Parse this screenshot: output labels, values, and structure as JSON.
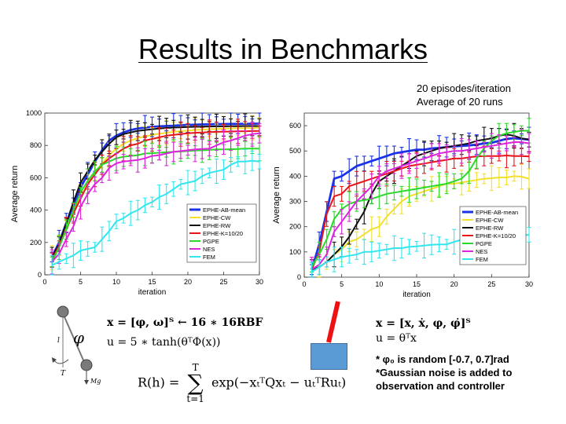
{
  "slide": {
    "title": "Results in Benchmarks",
    "note_line1": "20 episodes/iteration",
    "note_line2": "Average of 20 runs"
  },
  "colors": {
    "EPHE-AB-mean": "#1a33e6",
    "EPHE-CW": "#f2e02b",
    "EPHE-RW": "#111111",
    "EPHE-K=10/20": "#e8141a",
    "PGPE": "#2bd92b",
    "NES": "#dd25dd",
    "FEM": "#33e6ee"
  },
  "chart_data": [
    {
      "type": "line",
      "xlabel": "iteration",
      "ylabel": "Average return",
      "xlim": [
        0,
        30
      ],
      "ylim": [
        0,
        1000
      ],
      "xticks": [
        0,
        5,
        10,
        15,
        20,
        25,
        30
      ],
      "yticks": [
        0,
        200,
        400,
        600,
        800,
        1000
      ],
      "legend_position": "lower-right",
      "error_bars": true,
      "x": [
        1,
        2,
        3,
        4,
        5,
        6,
        7,
        8,
        9,
        10,
        11,
        12,
        13,
        14,
        15,
        16,
        17,
        18,
        19,
        20,
        21,
        22,
        23,
        24,
        25,
        26,
        27,
        28,
        29,
        30
      ],
      "series": [
        {
          "name": "EPHE-AB-mean",
          "values": [
            110,
            200,
            320,
            430,
            540,
            620,
            700,
            770,
            830,
            860,
            880,
            895,
            905,
            910,
            915,
            918,
            920,
            922,
            925,
            926,
            928,
            930,
            930,
            932,
            932,
            933,
            933,
            934,
            934,
            935
          ]
        },
        {
          "name": "EPHE-CW",
          "values": [
            105,
            180,
            290,
            390,
            480,
            560,
            630,
            690,
            740,
            780,
            810,
            830,
            845,
            855,
            865,
            872,
            878,
            884,
            888,
            892,
            895,
            898,
            900,
            902,
            904,
            905,
            906,
            907,
            908,
            910
          ]
        },
        {
          "name": "EPHE-RW",
          "values": [
            110,
            190,
            320,
            450,
            570,
            640,
            710,
            760,
            810,
            850,
            870,
            880,
            890,
            895,
            900,
            905,
            908,
            910,
            912,
            914,
            915,
            916,
            917,
            918,
            918,
            919,
            919,
            920,
            920,
            920
          ]
        },
        {
          "name": "EPHE-K=10/20",
          "values": [
            90,
            180,
            280,
            380,
            470,
            560,
            620,
            680,
            720,
            750,
            780,
            800,
            810,
            830,
            840,
            850,
            860,
            865,
            870,
            875,
            878,
            880,
            882,
            884,
            885,
            886,
            887,
            888,
            889,
            890
          ]
        },
        {
          "name": "PGPE",
          "values": [
            80,
            170,
            280,
            400,
            510,
            580,
            640,
            680,
            700,
            720,
            730,
            735,
            740,
            750,
            752,
            755,
            758,
            760,
            762,
            765,
            768,
            770,
            772,
            775,
            775,
            776,
            778,
            780,
            780,
            780
          ]
        },
        {
          "name": "NES",
          "values": [
            80,
            130,
            220,
            300,
            420,
            500,
            560,
            600,
            660,
            690,
            700,
            705,
            710,
            720,
            735,
            740,
            750,
            760,
            765,
            770,
            775,
            778,
            780,
            800,
            820,
            830,
            845,
            860,
            870,
            875
          ]
        },
        {
          "name": "FEM",
          "values": [
            60,
            80,
            100,
            120,
            150,
            160,
            170,
            220,
            270,
            330,
            350,
            380,
            400,
            430,
            450,
            480,
            500,
            530,
            560,
            570,
            580,
            610,
            630,
            640,
            650,
            680,
            700,
            700,
            705,
            700
          ]
        }
      ]
    },
    {
      "type": "line",
      "xlabel": "iteration",
      "ylabel": "Average return",
      "xlim": [
        0,
        30
      ],
      "ylim": [
        0,
        650
      ],
      "xticks": [
        0,
        5,
        10,
        15,
        20,
        25,
        30
      ],
      "yticks": [
        0,
        100,
        200,
        300,
        400,
        500,
        600
      ],
      "legend_position": "lower-right",
      "error_bars": true,
      "x": [
        1,
        2,
        3,
        4,
        5,
        6,
        7,
        8,
        9,
        10,
        11,
        12,
        13,
        14,
        15,
        16,
        17,
        18,
        19,
        20,
        21,
        22,
        23,
        24,
        25,
        26,
        27,
        28,
        29,
        30
      ],
      "series": [
        {
          "name": "EPHE-AB-mean",
          "values": [
            30,
            130,
            260,
            390,
            400,
            420,
            440,
            450,
            460,
            470,
            480,
            490,
            495,
            500,
            505,
            505,
            510,
            512,
            515,
            518,
            520,
            522,
            525,
            530,
            532,
            540,
            548,
            550,
            548,
            545
          ]
        },
        {
          "name": "EPHE-CW",
          "values": [
            30,
            40,
            60,
            90,
            110,
            140,
            150,
            170,
            190,
            200,
            240,
            270,
            300,
            320,
            330,
            340,
            350,
            360,
            370,
            370,
            375,
            380,
            385,
            390,
            392,
            395,
            395,
            400,
            398,
            390
          ]
        },
        {
          "name": "EPHE-RW",
          "values": [
            30,
            40,
            60,
            90,
            120,
            160,
            210,
            260,
            330,
            380,
            400,
            420,
            440,
            460,
            480,
            490,
            500,
            510,
            515,
            520,
            525,
            530,
            540,
            545,
            550,
            560,
            565,
            560,
            550,
            545
          ]
        },
        {
          "name": "EPHE-K=10/20",
          "values": [
            30,
            100,
            250,
            320,
            330,
            360,
            370,
            380,
            390,
            400,
            410,
            420,
            430,
            440,
            445,
            450,
            455,
            460,
            465,
            470,
            470,
            475,
            478,
            480,
            480,
            480,
            482,
            480,
            480,
            478
          ]
        },
        {
          "name": "PGPE",
          "values": [
            40,
            90,
            150,
            230,
            270,
            290,
            300,
            305,
            310,
            320,
            330,
            335,
            340,
            345,
            350,
            355,
            360,
            365,
            370,
            380,
            390,
            420,
            470,
            510,
            540,
            560,
            570,
            575,
            580,
            580
          ]
        },
        {
          "name": "NES",
          "values": [
            30,
            50,
            90,
            180,
            220,
            260,
            300,
            330,
            360,
            400,
            420,
            430,
            440,
            450,
            460,
            470,
            480,
            490,
            495,
            500,
            500,
            505,
            510,
            515,
            520,
            525,
            530,
            535,
            535,
            530
          ]
        },
        {
          "name": "FEM",
          "values": [
            20,
            40,
            60,
            70,
            80,
            85,
            90,
            100,
            100,
            105,
            110,
            115,
            115,
            120,
            122,
            125,
            128,
            130,
            130,
            140,
            148,
            150,
            152,
            155,
            155,
            158,
            160,
            162,
            165,
            168
          ]
        }
      ]
    }
  ],
  "pendulum": {
    "angle_symbol": "φ",
    "length_symbol": "l",
    "torque_symbol": "T",
    "weight_symbol": "Mg"
  },
  "left_formulas": {
    "line1": "x = [φ, ω]ᵀ ← 16 ∗ 16RBF",
    "line2": "u = 5 ∗ tanh(θᵀΦ(x))",
    "reward_lhs": "R(h) =",
    "reward_sum_top": "T",
    "reward_sum_bottom": "t=1",
    "reward_body": "exp(−xₜᵀQxₜ − uₜᵀRuₜ)"
  },
  "right_formulas": {
    "line1": "x = [x, ẋ, φ, φ̇]ᵀ",
    "line2": "u = θᵀx",
    "bullet1": "* φ₀ is random [-0.7, 0.7]rad",
    "bullet2": "*Gaussian noise is added to",
    "bullet3": "observation and controller"
  }
}
